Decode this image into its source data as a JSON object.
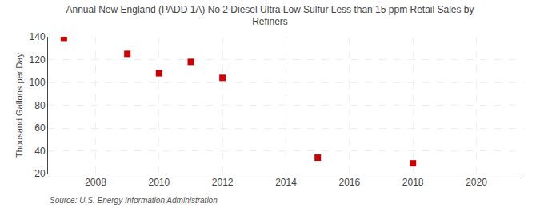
{
  "chart_data": {
    "type": "scatter",
    "title": "Annual New England (PADD 1A) No 2 Diesel Ultra Low Sulfur Less than 15 ppm Retail Sales by\nRefiners",
    "ylabel": "Thousand Gallons per Day",
    "annotations": [
      "Source: U.S. Energy Information Administration"
    ],
    "x": [
      2007,
      2009,
      2010,
      2011,
      2012,
      2015,
      2018
    ],
    "values": [
      139,
      125,
      108,
      118,
      104,
      34,
      29
    ],
    "color": "#cc0000",
    "marker": "square",
    "xlim": [
      2006.5,
      2021.5
    ],
    "ylim": [
      20,
      140
    ],
    "xticks": [
      2008,
      2010,
      2012,
      2014,
      2016,
      2018,
      2020
    ],
    "yticks": [
      20,
      40,
      60,
      80,
      100,
      120,
      140
    ],
    "grid": true
  }
}
